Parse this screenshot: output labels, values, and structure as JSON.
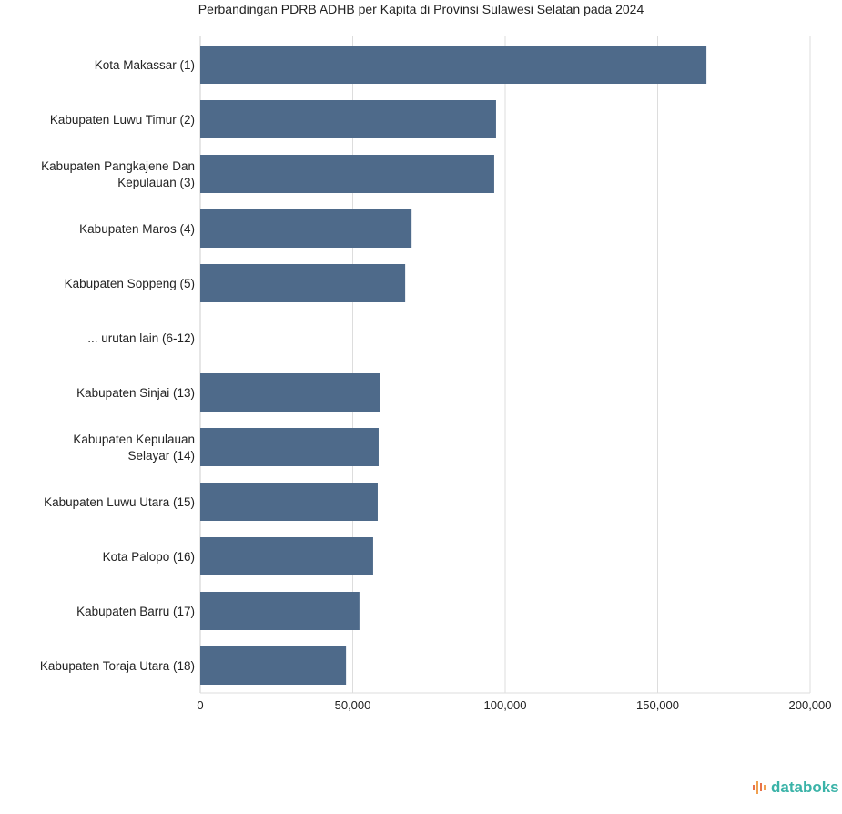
{
  "chart_data": {
    "type": "bar",
    "orientation": "horizontal",
    "title": "Perbandingan PDRB ADHB per Kapita di Provinsi Sulawesi Selatan pada 2024",
    "categories": [
      [
        "Kota Makassar (1)"
      ],
      [
        "Kabupaten Luwu Timur (2)"
      ],
      [
        "Kabupaten Pangkajene Dan",
        "Kepulauan (3)"
      ],
      [
        "Kabupaten Maros (4)"
      ],
      [
        "Kabupaten Soppeng (5)"
      ],
      [
        "... urutan lain (6-12)"
      ],
      [
        "Kabupaten Sinjai (13)"
      ],
      [
        "Kabupaten Kepulauan",
        "Selayar (14)"
      ],
      [
        "Kabupaten Luwu Utara (15)"
      ],
      [
        "Kota Palopo (16)"
      ],
      [
        "Kabupaten Barru (17)"
      ],
      [
        "Kabupaten Toraja Utara (18)"
      ]
    ],
    "values": [
      166000,
      97000,
      96400,
      69300,
      67200,
      null,
      59100,
      58500,
      58200,
      56700,
      52200,
      47800
    ],
    "xlim": [
      0,
      200000
    ],
    "xticks": [
      0,
      50000,
      100000,
      150000,
      200000
    ],
    "xtick_labels": [
      "0",
      "50,000",
      "100,000",
      "150,000",
      "200,000"
    ],
    "grid": true,
    "bar_color": "#4e6a8a"
  },
  "logo": {
    "text": "databoks"
  }
}
